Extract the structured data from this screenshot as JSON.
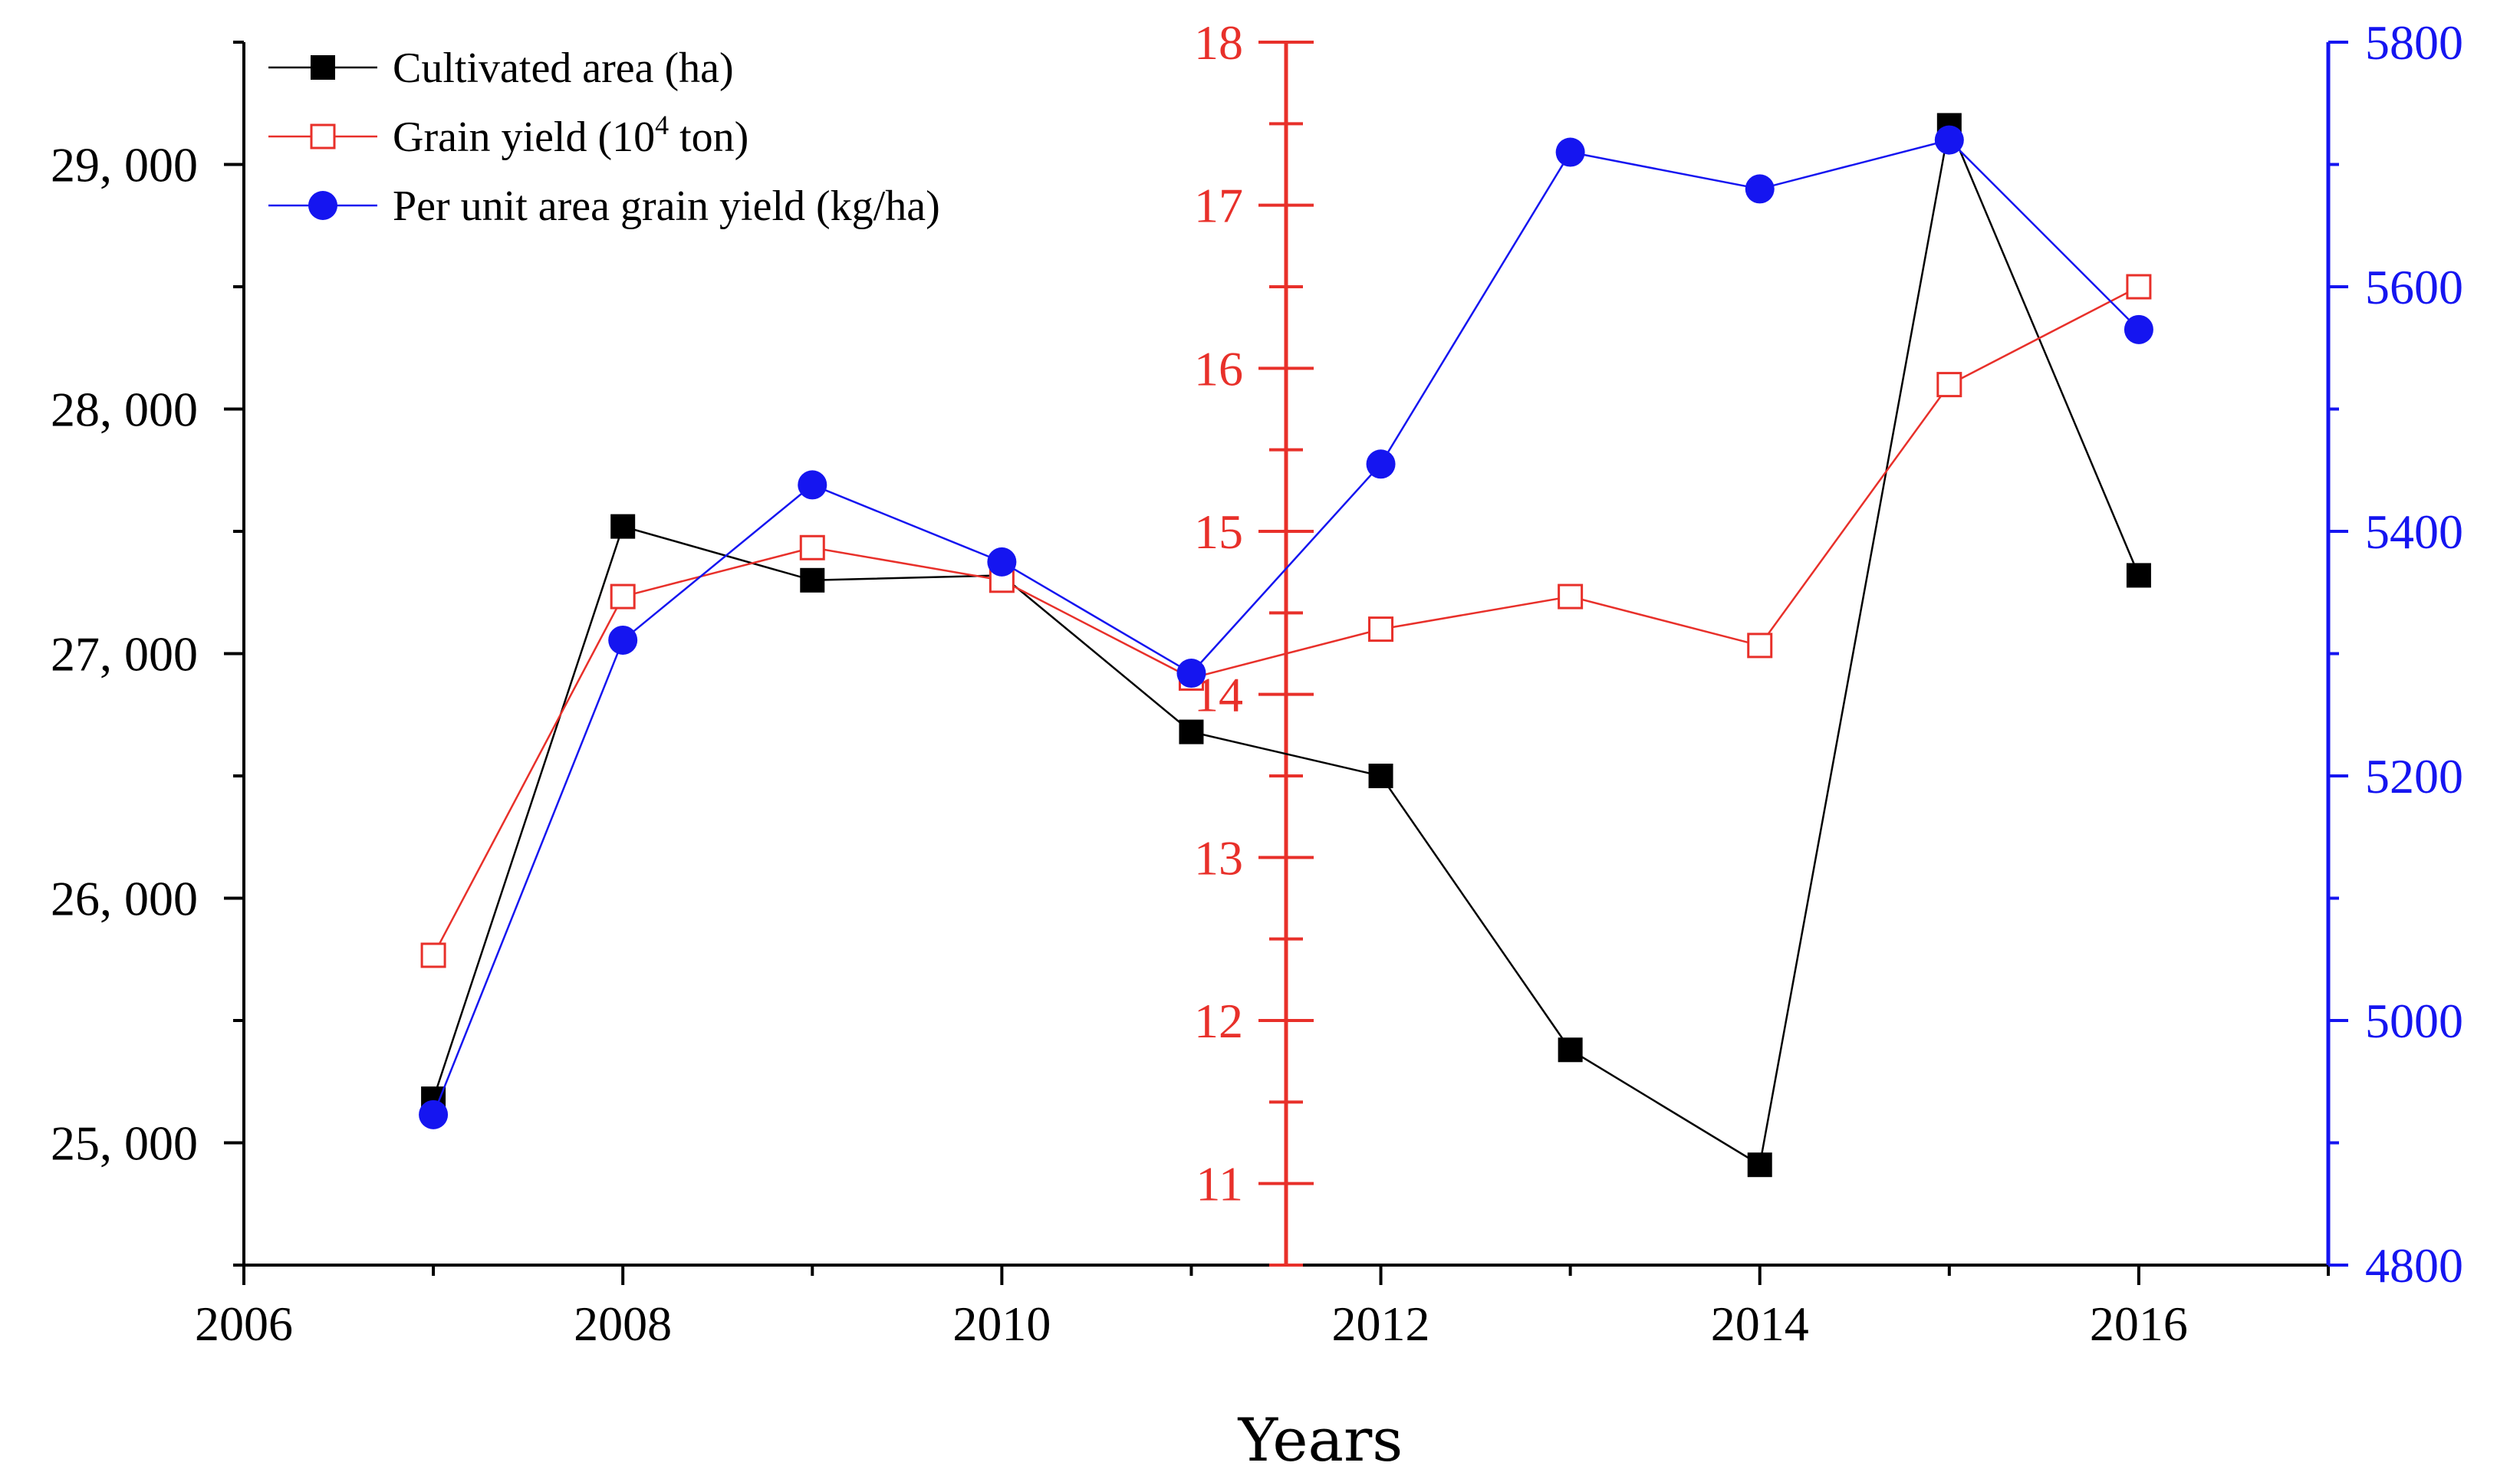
{
  "chart_data": {
    "type": "line",
    "x": [
      2007,
      2008,
      2009,
      2010,
      2011,
      2012,
      2013,
      2014,
      2015,
      2016
    ],
    "xlabel": "Years",
    "xlim": [
      2006,
      2017
    ],
    "x_ticks": [
      "2006",
      "2008",
      "2010",
      "2012",
      "2014",
      "2016"
    ],
    "series": [
      {
        "name": "Cultivated area (ha)",
        "axis": "left",
        "marker": "filled-square",
        "color": "#000000",
        "values": [
          25180,
          27520,
          27300,
          27320,
          26680,
          26500,
          25380,
          24910,
          29160,
          27320
        ]
      },
      {
        "name": "Grain yield (10",
        "name_sup": "4",
        "name_suffix": " ton)",
        "axis": "middle",
        "marker": "open-square",
        "color": "#e8302a",
        "values": [
          12.4,
          14.6,
          14.9,
          14.7,
          14.1,
          14.4,
          14.6,
          14.3,
          15.9,
          16.5
        ]
      },
      {
        "name": "Per unit area grain yield (kg/ha)",
        "axis": "right",
        "marker": "filled-circle",
        "color": "#1515f0",
        "values": [
          4923,
          5311,
          5438,
          5375,
          5284,
          5455,
          5710,
          5680,
          5720,
          5565
        ]
      }
    ],
    "axes": {
      "left": {
        "ylim": [
          24500,
          29500
        ],
        "ticks": [
          25000,
          26000,
          27000,
          28000,
          29000
        ],
        "tick_labels": [
          "25, 000",
          "26, 000",
          "27, 000",
          "28, 000",
          "29, 000"
        ],
        "color": "#000000"
      },
      "middle": {
        "ylim": [
          10.5,
          18
        ],
        "ticks": [
          11,
          12,
          13,
          14,
          15,
          16,
          17,
          18
        ],
        "tick_labels": [
          "11",
          "12",
          "13",
          "14",
          "15",
          "16",
          "17",
          "18"
        ],
        "position_year": 2011.5,
        "color": "#e8302a"
      },
      "right": {
        "ylim": [
          4800,
          5800
        ],
        "ticks": [
          4800,
          5000,
          5200,
          5400,
          5600,
          5800
        ],
        "tick_labels": [
          "4800",
          "5000",
          "5200",
          "5400",
          "5600",
          "5800"
        ],
        "color": "#1515f0"
      }
    },
    "legend": "top-left"
  }
}
